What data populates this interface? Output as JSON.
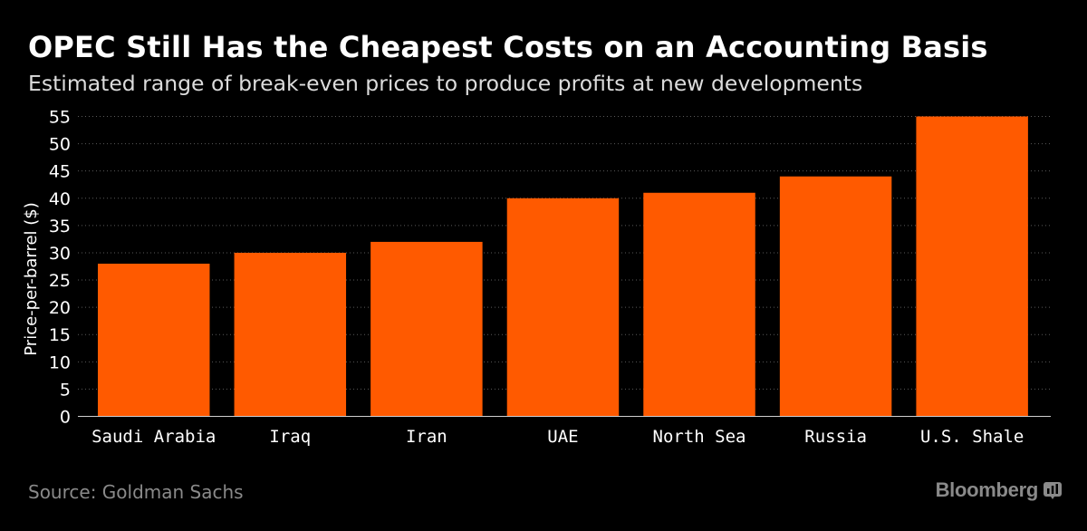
{
  "header": {
    "title": "OPEC Still Has the Cheapest Costs on an Accounting Basis",
    "subtitle": "Estimated range of break-even prices to produce profits at new developments"
  },
  "footer": {
    "source": "Source: Goldman Sachs",
    "brand": "Bloomberg",
    "brand_icon": "bloomberg-terminal-icon"
  },
  "colors": {
    "background": "#000000",
    "bar": "#ff5a00",
    "grid": "#5a5a5a",
    "axis_text": "#ffffff",
    "muted_text": "#8a8a8a"
  },
  "chart_data": {
    "type": "bar",
    "title": "OPEC Still Has the Cheapest Costs on an Accounting Basis",
    "subtitle": "Estimated range of break-even prices to produce profits at new developments",
    "categories": [
      "Saudi Arabia",
      "Iraq",
      "Iran",
      "UAE",
      "North Sea",
      "Russia",
      "U.S. Shale"
    ],
    "values": [
      28,
      30,
      32,
      40,
      41,
      44,
      55
    ],
    "xlabel": "",
    "ylabel": "Price-per-barrel ($)",
    "ylim": [
      0,
      55
    ],
    "yticks": [
      0,
      5,
      10,
      15,
      20,
      25,
      30,
      35,
      40,
      45,
      50,
      55
    ],
    "grid": true,
    "legend": "none"
  }
}
